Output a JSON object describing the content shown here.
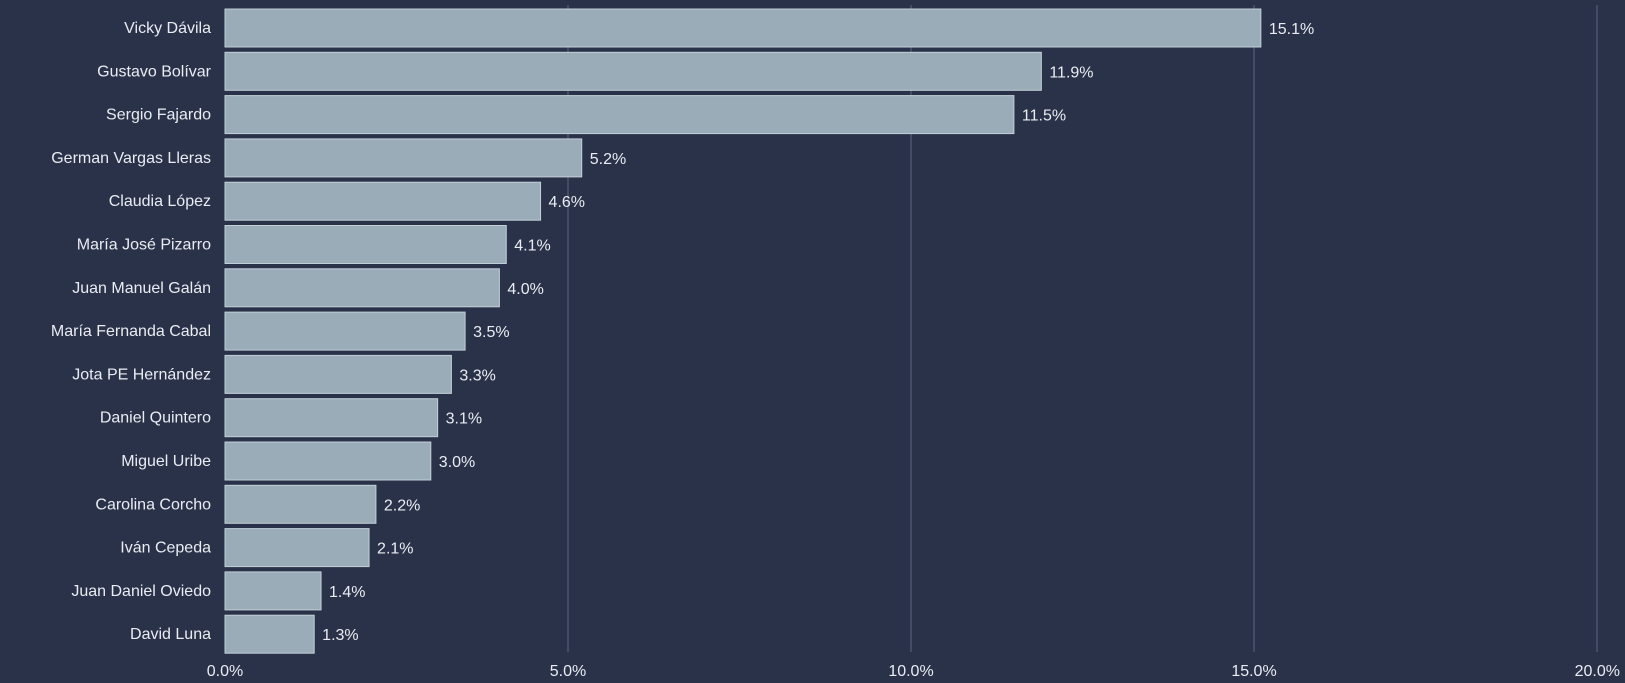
{
  "chart_data": {
    "type": "bar",
    "orientation": "horizontal",
    "title": "",
    "xlabel": "",
    "ylabel": "",
    "categories": [
      "Vicky Dávila",
      "Gustavo Bolívar",
      "Sergio Fajardo",
      "German Vargas Lleras",
      "Claudia López",
      "María José Pizarro",
      "Juan Manuel Galán",
      "María Fernanda Cabal",
      "Jota PE Hernández",
      "Daniel Quintero",
      "Miguel Uribe",
      "Carolina Corcho",
      "Iván Cepeda",
      "Juan Daniel Oviedo",
      "David Luna"
    ],
    "values": [
      15.1,
      11.9,
      11.5,
      5.2,
      4.6,
      4.1,
      4.0,
      3.5,
      3.3,
      3.1,
      3.0,
      2.2,
      2.1,
      1.4,
      1.3
    ],
    "value_labels": [
      "15.1%",
      "11.9%",
      "11.5%",
      "5.2%",
      "4.6%",
      "4.1%",
      "4.0%",
      "3.5%",
      "3.3%",
      "3.1%",
      "3.0%",
      "2.2%",
      "2.1%",
      "1.4%",
      "1.3%"
    ],
    "xlim": [
      0,
      20
    ],
    "x_ticks": [
      0,
      5,
      10,
      15,
      20
    ],
    "x_tick_labels": [
      "0.0%",
      "5.0%",
      "10.0%",
      "15.0%",
      "20.0%"
    ],
    "grid": true,
    "legend": "none",
    "colors": {
      "background": "#2a3249",
      "bar": "#9aacb8",
      "bar_edge": "#c2cfd7",
      "grid": "#4b556d",
      "text": "#e9edf2"
    }
  }
}
